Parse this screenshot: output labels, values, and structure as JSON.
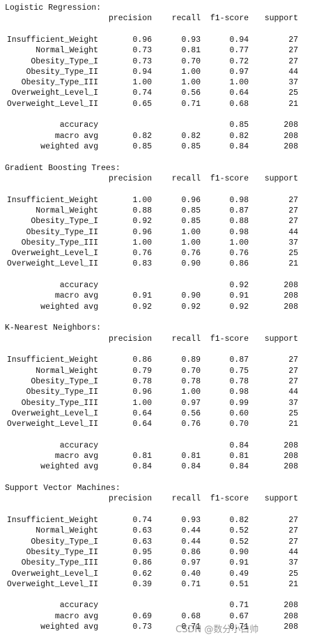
{
  "reports": [
    {
      "title": "Logistic Regression:",
      "columns": [
        "precision",
        "recall",
        "f1-score",
        "support"
      ],
      "rows": [
        [
          "Insufficient_Weight",
          "0.96",
          "0.93",
          "0.94",
          27
        ],
        [
          "Normal_Weight",
          "0.73",
          "0.81",
          "0.77",
          27
        ],
        [
          "Obesity_Type_I",
          "0.73",
          "0.70",
          "0.72",
          27
        ],
        [
          "Obesity_Type_II",
          "0.94",
          "1.00",
          "0.97",
          44
        ],
        [
          "Obesity_Type_III",
          "1.00",
          "1.00",
          "1.00",
          37
        ],
        [
          "Overweight_Level_I",
          "0.74",
          "0.56",
          "0.64",
          25
        ],
        [
          "Overweight_Level_II",
          "0.65",
          "0.71",
          "0.68",
          21
        ]
      ],
      "summary": [
        [
          "accuracy",
          null,
          null,
          "0.85",
          208
        ],
        [
          "macro avg",
          "0.82",
          "0.82",
          "0.82",
          208
        ],
        [
          "weighted avg",
          "0.85",
          "0.85",
          "0.84",
          208
        ]
      ]
    },
    {
      "title": "Gradient Boosting Trees:",
      "columns": [
        "precision",
        "recall",
        "f1-score",
        "support"
      ],
      "rows": [
        [
          "Insufficient_Weight",
          "1.00",
          "0.96",
          "0.98",
          27
        ],
        [
          "Normal_Weight",
          "0.88",
          "0.85",
          "0.87",
          27
        ],
        [
          "Obesity_Type_I",
          "0.92",
          "0.85",
          "0.88",
          27
        ],
        [
          "Obesity_Type_II",
          "0.96",
          "1.00",
          "0.98",
          44
        ],
        [
          "Obesity_Type_III",
          "1.00",
          "1.00",
          "1.00",
          37
        ],
        [
          "Overweight_Level_I",
          "0.76",
          "0.76",
          "0.76",
          25
        ],
        [
          "Overweight_Level_II",
          "0.83",
          "0.90",
          "0.86",
          21
        ]
      ],
      "summary": [
        [
          "accuracy",
          null,
          null,
          "0.92",
          208
        ],
        [
          "macro avg",
          "0.91",
          "0.90",
          "0.91",
          208
        ],
        [
          "weighted avg",
          "0.92",
          "0.92",
          "0.92",
          208
        ]
      ]
    },
    {
      "title": "K-Nearest Neighbors:",
      "columns": [
        "precision",
        "recall",
        "f1-score",
        "support"
      ],
      "rows": [
        [
          "Insufficient_Weight",
          "0.86",
          "0.89",
          "0.87",
          27
        ],
        [
          "Normal_Weight",
          "0.79",
          "0.70",
          "0.75",
          27
        ],
        [
          "Obesity_Type_I",
          "0.78",
          "0.78",
          "0.78",
          27
        ],
        [
          "Obesity_Type_II",
          "0.96",
          "1.00",
          "0.98",
          44
        ],
        [
          "Obesity_Type_III",
          "1.00",
          "0.97",
          "0.99",
          37
        ],
        [
          "Overweight_Level_I",
          "0.64",
          "0.56",
          "0.60",
          25
        ],
        [
          "Overweight_Level_II",
          "0.64",
          "0.76",
          "0.70",
          21
        ]
      ],
      "summary": [
        [
          "accuracy",
          null,
          null,
          "0.84",
          208
        ],
        [
          "macro avg",
          "0.81",
          "0.81",
          "0.81",
          208
        ],
        [
          "weighted avg",
          "0.84",
          "0.84",
          "0.84",
          208
        ]
      ]
    },
    {
      "title": "Support Vector Machines:",
      "columns": [
        "precision",
        "recall",
        "f1-score",
        "support"
      ],
      "rows": [
        [
          "Insufficient_Weight",
          "0.74",
          "0.93",
          "0.82",
          27
        ],
        [
          "Normal_Weight",
          "0.63",
          "0.44",
          "0.52",
          27
        ],
        [
          "Obesity_Type_I",
          "0.63",
          "0.44",
          "0.52",
          27
        ],
        [
          "Obesity_Type_II",
          "0.95",
          "0.86",
          "0.90",
          44
        ],
        [
          "Obesity_Type_III",
          "0.86",
          "0.97",
          "0.91",
          37
        ],
        [
          "Overweight_Level_I",
          "0.62",
          "0.40",
          "0.49",
          25
        ],
        [
          "Overweight_Level_II",
          "0.39",
          "0.71",
          "0.51",
          21
        ]
      ],
      "summary": [
        [
          "accuracy",
          null,
          null,
          "0.71",
          208
        ],
        [
          "macro avg",
          "0.69",
          "0.68",
          "0.67",
          208
        ],
        [
          "weighted avg",
          "0.73",
          "0.71",
          "0.71",
          208
        ]
      ]
    }
  ],
  "watermark": "CSDN @数分小白帅"
}
